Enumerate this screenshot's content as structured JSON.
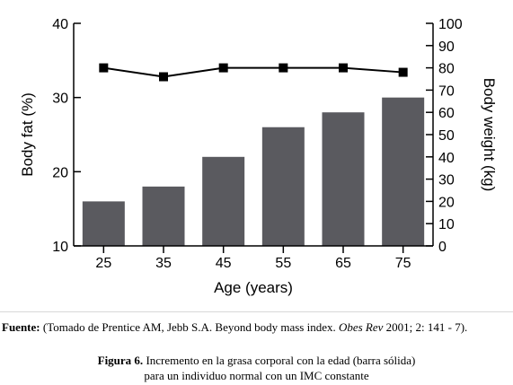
{
  "chart_data": {
    "type": "bar",
    "xlabel": "Age (years)",
    "ylabel": "Body fat (%)",
    "y2label": "Body weight (kg)",
    "categories": [
      "25",
      "35",
      "45",
      "55",
      "65",
      "75"
    ],
    "ylim": [
      10,
      40
    ],
    "yticks": [
      10,
      20,
      30,
      40
    ],
    "y2lim": [
      0,
      100
    ],
    "y2ticks": [
      0,
      10,
      20,
      30,
      40,
      50,
      60,
      70,
      80,
      90,
      100
    ],
    "series": [
      {
        "type": "bar",
        "axis": "left",
        "values": [
          16,
          18,
          22,
          26,
          28,
          30
        ]
      },
      {
        "type": "line",
        "axis": "right",
        "values": [
          80,
          76,
          80,
          80,
          80,
          78
        ]
      }
    ],
    "grid": false,
    "colors": {
      "bar": "#5a5a5f",
      "line": "#000000"
    }
  },
  "source": {
    "label": "Fuente:",
    "text_before": " (Tomado de Prentice AM, Jebb S.A. Beyond body mass index. ",
    "journal": "Obes Rev",
    "text_after": " 2001; 2: 141 - 7)."
  },
  "figure": {
    "label": "Figura 6.",
    "line1": " Incremento en la grasa corporal con la edad (barra sólida)",
    "line2": "para un individuo normal con un IMC constante"
  }
}
